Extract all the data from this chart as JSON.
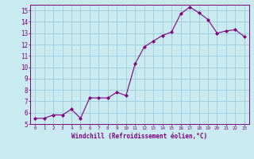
{
  "x": [
    0,
    1,
    2,
    3,
    4,
    5,
    6,
    7,
    8,
    9,
    10,
    11,
    12,
    13,
    14,
    15,
    16,
    17,
    18,
    19,
    20,
    21,
    22,
    23
  ],
  "y": [
    5.5,
    5.5,
    5.8,
    5.8,
    6.3,
    5.5,
    7.3,
    7.3,
    7.3,
    7.8,
    7.5,
    10.3,
    11.8,
    12.3,
    12.8,
    13.1,
    14.7,
    15.3,
    14.8,
    14.2,
    13.0,
    13.2,
    13.3,
    12.7
  ],
  "line_color": "#800080",
  "marker": "D",
  "markersize": 2,
  "bg_color": "#c8eaf0",
  "grid_color": "#a0c8d8",
  "xlabel": "Windchill (Refroidissement éolien,°C)",
  "xlabel_color": "#800080",
  "tick_color": "#800080",
  "spine_color": "#800080",
  "ylim": [
    5,
    15.5
  ],
  "xlim": [
    -0.5,
    23.5
  ],
  "yticks": [
    5,
    6,
    7,
    8,
    9,
    10,
    11,
    12,
    13,
    14,
    15
  ],
  "xticks": [
    0,
    1,
    2,
    3,
    4,
    5,
    6,
    7,
    8,
    9,
    10,
    11,
    12,
    13,
    14,
    15,
    16,
    17,
    18,
    19,
    20,
    21,
    22,
    23
  ]
}
